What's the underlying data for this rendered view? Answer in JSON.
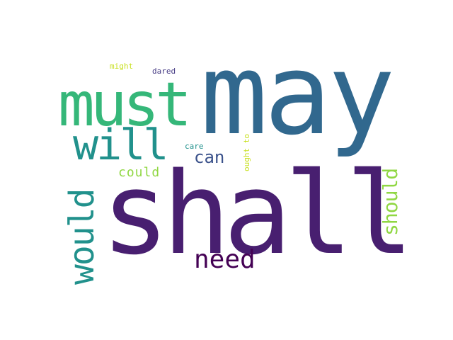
{
  "word_cloud": {
    "words": [
      {
        "key": "shall",
        "text": "shall",
        "color": "#481f70"
      },
      {
        "key": "may",
        "text": "may",
        "color": "#31688e"
      },
      {
        "key": "must",
        "text": "must",
        "color": "#35b779"
      },
      {
        "key": "will",
        "text": "will",
        "color": "#21918c"
      },
      {
        "key": "would",
        "text": "would",
        "color": "#21918c"
      },
      {
        "key": "need",
        "text": "need",
        "color": "#440154"
      },
      {
        "key": "should",
        "text": "should",
        "color": "#90d743"
      },
      {
        "key": "can",
        "text": "can",
        "color": "#3b528b"
      },
      {
        "key": "could",
        "text": "could",
        "color": "#90d743"
      },
      {
        "key": "care",
        "text": "care",
        "color": "#21918c"
      },
      {
        "key": "ought_to",
        "text": "ought to",
        "color": "#c8e020"
      },
      {
        "key": "might",
        "text": "might",
        "color": "#c8e020"
      },
      {
        "key": "dared",
        "text": "dared",
        "color": "#443983"
      }
    ]
  }
}
